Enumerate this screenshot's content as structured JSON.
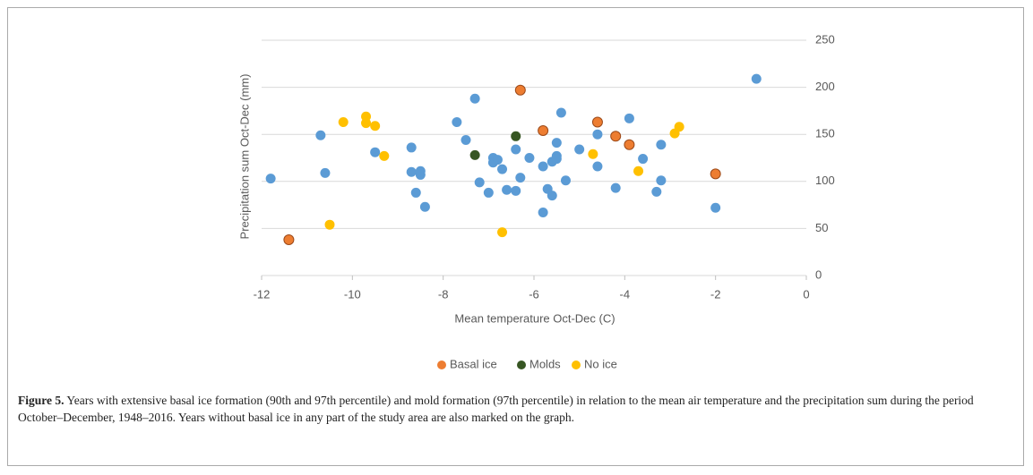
{
  "chart_data": {
    "type": "scatter",
    "xlabel": "Mean temperature Oct-Dec (C)",
    "ylabel": "Precipitation sum Oct-Dec (mm)",
    "xlim": [
      -12,
      0
    ],
    "xticks": [
      -12,
      -10,
      -8,
      -6,
      -4,
      -2,
      0
    ],
    "ylim": [
      0,
      250
    ],
    "yticks": [
      0,
      50,
      100,
      150,
      200,
      250
    ],
    "grid": true,
    "y_axis_side": "right",
    "legend": "bottom",
    "series": [
      {
        "color": "#5b9bd5",
        "x": [
          -11.8,
          -10.7,
          -10.6,
          -9.5,
          -8.7,
          -8.7,
          -8.6,
          -8.5,
          -8.5,
          -8.4,
          -7.5,
          -7.7,
          -7.3,
          -7.2,
          -7.0,
          -6.9,
          -6.9,
          -6.8,
          -6.7,
          -6.6,
          -6.4,
          -6.4,
          -6.3,
          -6.1,
          -5.8,
          -5.8,
          -5.7,
          -5.6,
          -5.6,
          -5.5,
          -5.5,
          -5.5,
          -5.4,
          -5.3,
          -5.0,
          -4.6,
          -4.6,
          -4.2,
          -3.9,
          -3.6,
          -3.3,
          -3.2,
          -3.2,
          -1.1,
          -2.0
        ],
        "values": [
          103,
          149,
          109,
          131,
          110,
          136,
          88,
          107,
          111,
          73,
          144,
          163,
          188,
          99,
          88,
          125,
          120,
          123,
          113,
          91,
          134,
          90,
          104,
          125,
          67,
          116,
          92,
          121,
          85,
          141,
          127,
          124,
          173,
          101,
          134,
          150,
          116,
          93,
          167,
          124,
          89,
          101,
          139,
          209,
          72
        ]
      },
      {
        "name": "Basal ice",
        "color": "#ed7d31",
        "x": [
          -11.4,
          -6.3,
          -5.8,
          -4.6,
          -4.2,
          -3.9,
          -2.0
        ],
        "values": [
          38,
          197,
          154,
          163,
          148,
          139,
          108
        ]
      },
      {
        "name": "Molds",
        "color": "#375623",
        "x": [
          -7.3,
          -6.4
        ],
        "values": [
          128,
          148
        ]
      },
      {
        "name": "No ice",
        "color": "#ffc000",
        "x": [
          -10.2,
          -9.7,
          -9.7,
          -9.5,
          -9.3,
          -10.5,
          -6.7,
          -4.7,
          -3.7,
          -2.9,
          -2.8
        ],
        "values": [
          163,
          169,
          162,
          159,
          127,
          54,
          46,
          129,
          111,
          151,
          158
        ]
      }
    ]
  },
  "caption": {
    "label": "Figure 5.",
    "text": "Years with extensive basal ice formation (90th and 97th percentile) and mold formation (97th percentile) in relation to the mean air temperature and the precipitation sum during the period October–December, 1948–2016. Years without basal ice in any part of the study area are also marked on the graph."
  }
}
